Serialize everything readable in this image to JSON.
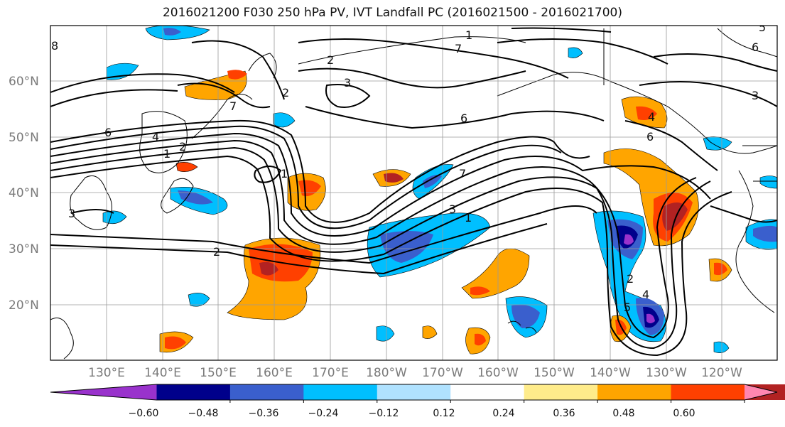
{
  "title": "2016021200 F030 250 hPa PV, IVT Landfall PC (2016021500 - 2016021700)",
  "map": {
    "lat_labels": [
      "60°N",
      "50°N",
      "40°N",
      "30°N",
      "20°N"
    ],
    "lon_labels": [
      "130°E",
      "140°E",
      "150°E",
      "160°E",
      "170°E",
      "180°W",
      "170°W",
      "160°W",
      "150°W",
      "140°W",
      "130°W",
      "120°W"
    ],
    "contour_labels": [
      "8",
      "6",
      "4",
      "1",
      "2",
      "3",
      "2",
      "3",
      "1",
      "7",
      "6",
      "7",
      "3",
      "2",
      "1",
      "7",
      "1",
      "2",
      "4",
      "6",
      "5",
      "6",
      "3",
      "4",
      "2",
      "5"
    ]
  },
  "colorbar": {
    "colors": [
      "#9932CC",
      "#00008B",
      "#3A5FCD",
      "#00BFFF",
      "#B0E2FF",
      "#FFFFFF",
      "#FFEC8B",
      "#FFA500",
      "#FF4000",
      "#B22222",
      "#FF86B0"
    ],
    "tick_labels": [
      "−0.60",
      "−0.48",
      "−0.36",
      "−0.24",
      "−0.12",
      "0.12",
      "0.24",
      "0.36",
      "0.48",
      "0.60"
    ]
  }
}
